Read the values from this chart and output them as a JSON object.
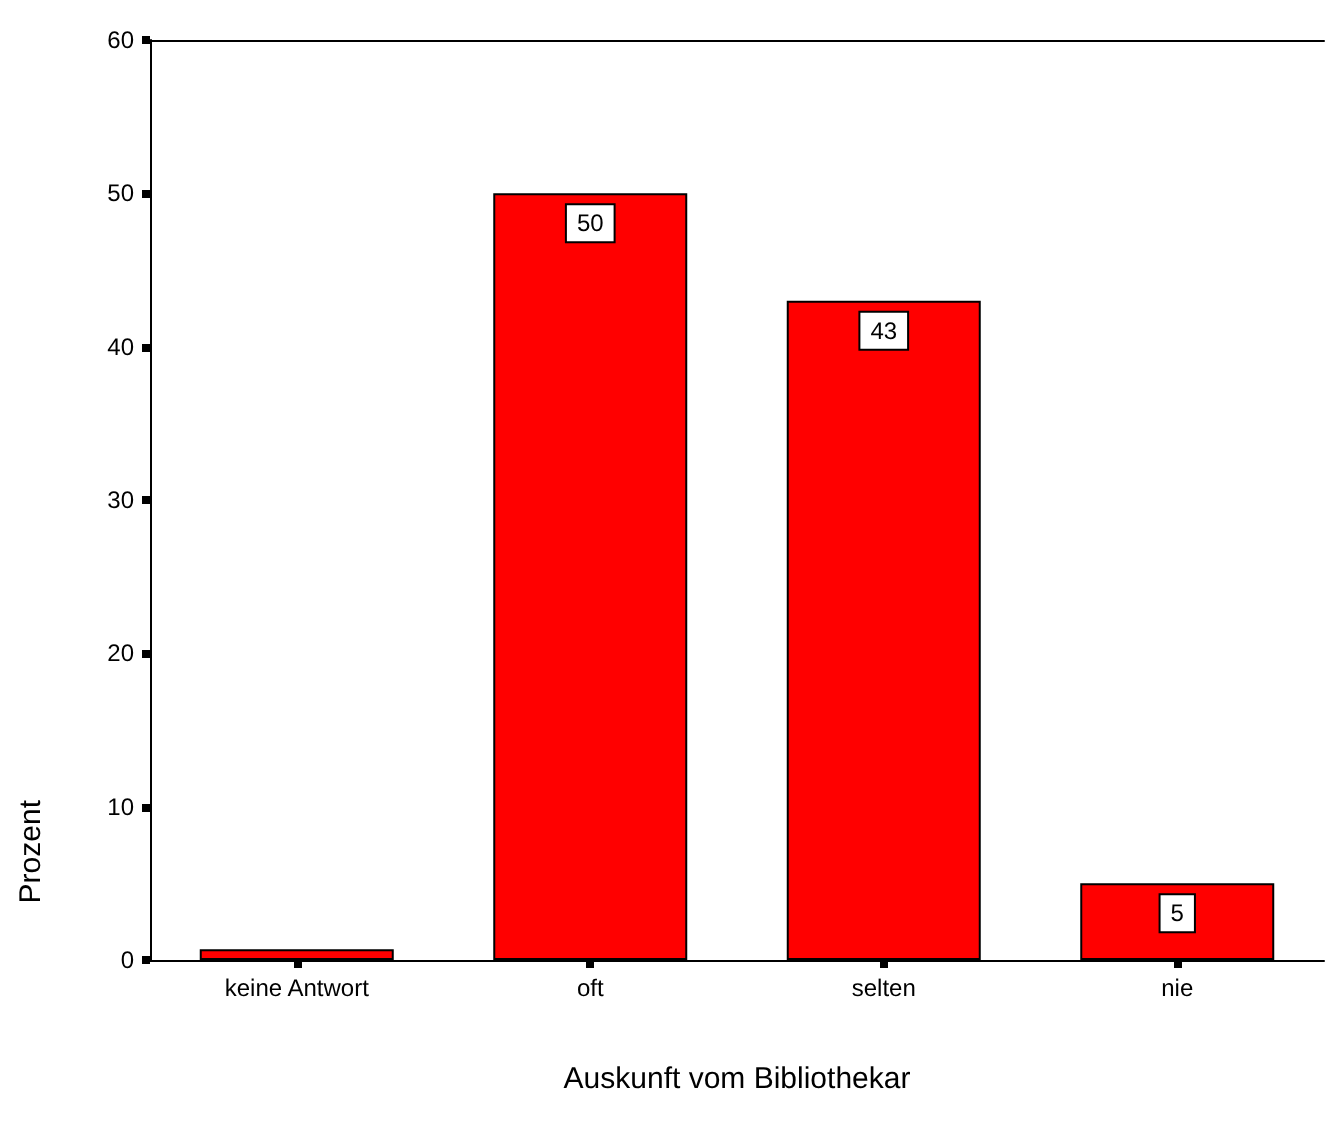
{
  "chart_data": {
    "type": "bar",
    "xlabel": "Auskunft vom Bibliothekar",
    "ylabel": "Prozent",
    "categories": [
      "keine Antwort",
      "oft",
      "selten",
      "nie"
    ],
    "values": [
      0.7,
      50,
      43,
      5
    ],
    "value_labels": [
      null,
      "50",
      "43",
      "5"
    ],
    "color": "#ff0000",
    "ylim": [
      0,
      60
    ],
    "yticks": [
      0,
      10,
      20,
      30,
      40,
      50,
      60
    ],
    "grid": false
  }
}
